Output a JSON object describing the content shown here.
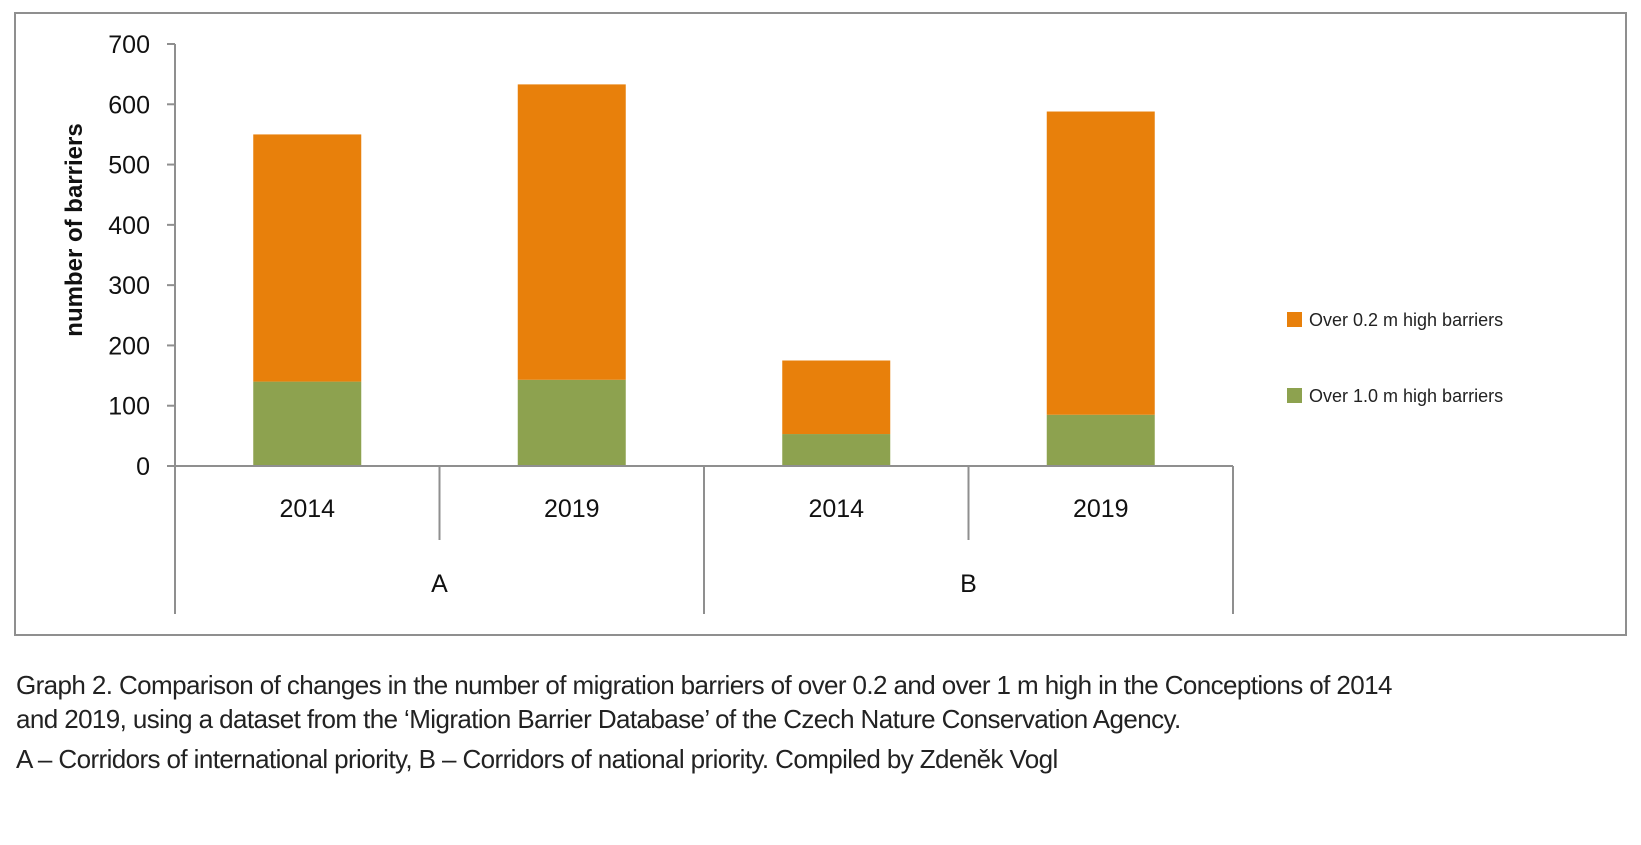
{
  "chart_data": {
    "type": "bar",
    "stacked": true,
    "ylabel": "number of barriers",
    "ylim": [
      0,
      700
    ],
    "yticks": [
      0,
      100,
      200,
      300,
      400,
      500,
      600,
      700
    ],
    "grid": false,
    "legend_position": "right",
    "groups": [
      {
        "label": "A",
        "categories": [
          "2014",
          "2019"
        ]
      },
      {
        "label": "B",
        "categories": [
          "2014",
          "2019"
        ]
      }
    ],
    "categories": [
      "2014",
      "2019",
      "2014",
      "2019"
    ],
    "series": [
      {
        "name": "Over 1.0 m high barriers",
        "color": "#8da24f",
        "values": [
          140,
          143,
          53,
          85
        ]
      },
      {
        "name": "Over 0.2 m high barriers",
        "color": "#e8800b",
        "values": [
          410,
          490,
          122,
          503
        ]
      }
    ]
  },
  "caption": {
    "line1": "Graph 2.  Comparison of changes in the number of migration barriers of over 0.2 and over 1 m high in the Conceptions of 2014",
    "line2": "and 2019, using a dataset from the ‘Migration Barrier Database’ of the Czech Nature Conservation Agency.",
    "line3": "A – Corridors of international priority, B – Corridors of national priority. Compiled by Zdeněk Vogl"
  }
}
